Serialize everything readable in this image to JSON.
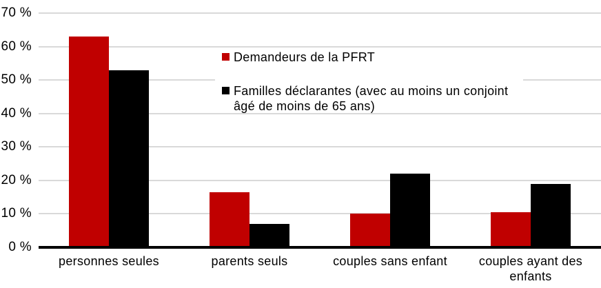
{
  "chart_data": {
    "type": "bar",
    "title": "",
    "categories": [
      "personnes seules",
      "parents seuls",
      "couples sans enfant",
      "couples ayant des enfants"
    ],
    "series": [
      {
        "name": "Demandeurs de la PFRT",
        "color": "#C00000",
        "values": [
          63,
          16.5,
          10,
          10.5
        ]
      },
      {
        "name": "Familles déclarantes (avec au moins un conjoint\nâgé de moins de 65 ans)",
        "color": "#000000",
        "values": [
          53,
          7,
          22,
          19
        ]
      }
    ],
    "y_axis": {
      "unit": "%",
      "tick_labels": [
        "0 %",
        "10 %",
        "20 %",
        "30 %",
        "40 %",
        "50 %",
        "60 %",
        "70 %"
      ],
      "tick_values": [
        0,
        10,
        20,
        30,
        40,
        50,
        60,
        70
      ],
      "min": 0,
      "max": 70,
      "gridlines": true
    },
    "xlabel": "",
    "ylabel": "",
    "legend_position": "inside-top-center-overlay"
  },
  "colors": {
    "background": "#FFFFFF",
    "gridline": "#D9D9D9",
    "axis_line": "#000000",
    "text": "#000000",
    "series_red": "#C00000",
    "series_black": "#000000"
  }
}
